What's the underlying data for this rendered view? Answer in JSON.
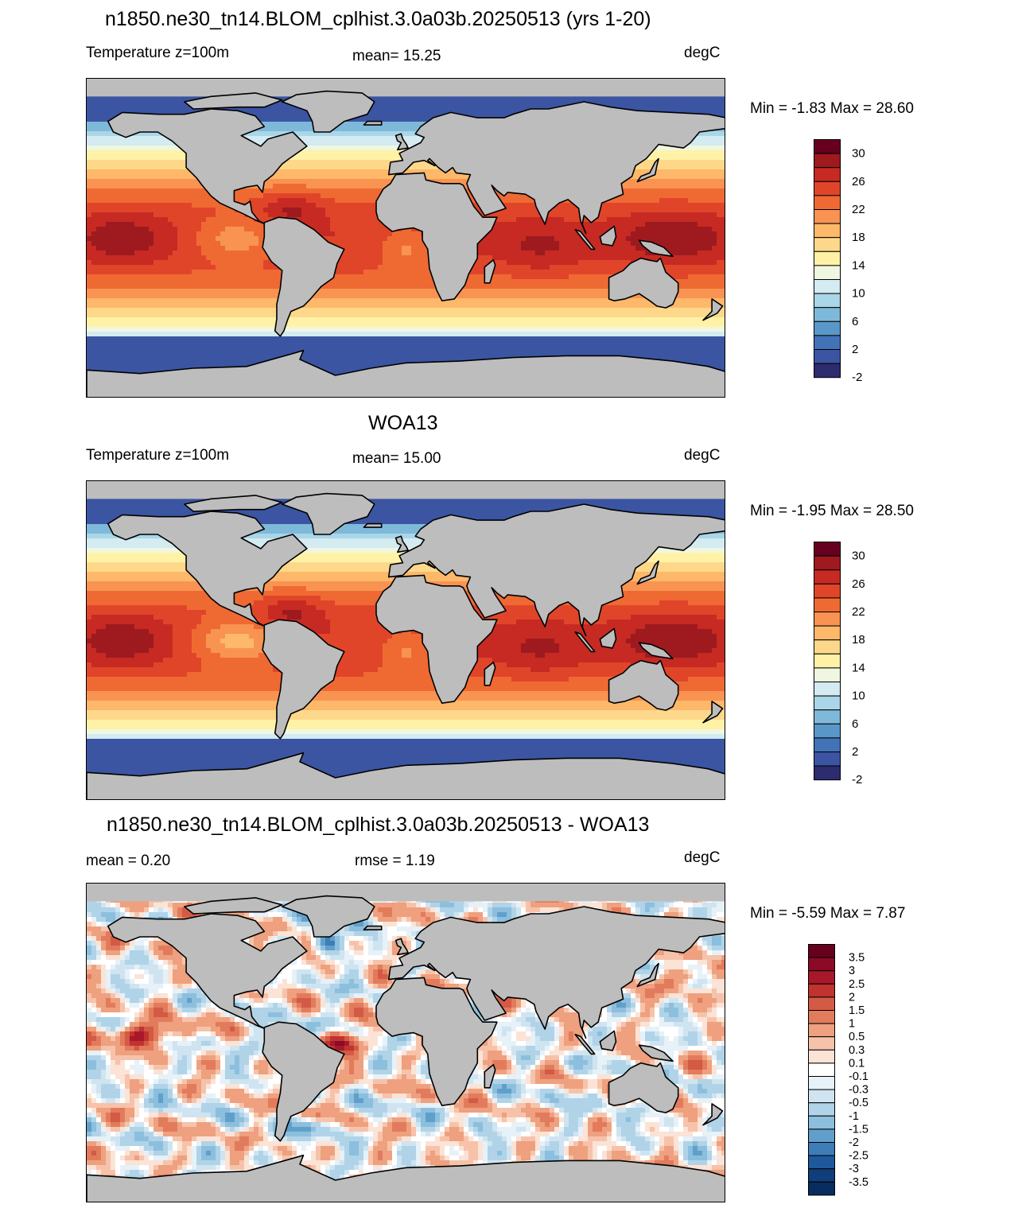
{
  "panels": [
    {
      "title": "n1850.ne30_tn14.BLOM_cplhist.3.0a03b.20250513 (yrs 1-20)",
      "left_label": "Temperature z=100m",
      "center_label": "mean=  15.25",
      "units": "degC",
      "minmax": "Min =  -1.83 Max =  28.60",
      "colorbar_labels": [
        "30",
        "26",
        "22",
        "18",
        "14",
        "10",
        "6",
        "2",
        "-2"
      ],
      "colorbar_colors": [
        "#67001f",
        "#9e1a1f",
        "#c62a22",
        "#e0452a",
        "#ef6a33",
        "#f99352",
        "#fdb86a",
        "#fed88a",
        "#fff2a6",
        "#f0f7e0",
        "#d3ebf1",
        "#a9d6e8",
        "#7fb9da",
        "#5a97c9",
        "#4273b6",
        "#3b55a2",
        "#2c2c6e"
      ],
      "kind": "temp",
      "variant": 0
    },
    {
      "title": "WOA13",
      "left_label": "Temperature z=100m",
      "center_label": "mean=  15.00",
      "units": "degC",
      "minmax": "Min =  -1.95 Max =  28.50",
      "colorbar_labels": [
        "30",
        "26",
        "22",
        "18",
        "14",
        "10",
        "6",
        "2",
        "-2"
      ],
      "colorbar_colors": [
        "#67001f",
        "#9e1a1f",
        "#c62a22",
        "#e0452a",
        "#ef6a33",
        "#f99352",
        "#fdb86a",
        "#fed88a",
        "#fff2a6",
        "#f0f7e0",
        "#d3ebf1",
        "#a9d6e8",
        "#7fb9da",
        "#5a97c9",
        "#4273b6",
        "#3b55a2",
        "#2c2c6e"
      ],
      "kind": "temp",
      "variant": 1
    },
    {
      "title": "n1850.ne30_tn14.BLOM_cplhist.3.0a03b.20250513 - WOA13",
      "left_label": "mean =   0.20",
      "center_label": "rmse =   1.19",
      "units": "degC",
      "minmax": "Min =  -5.59 Max =   7.87",
      "colorbar_labels": [
        "3.5",
        "3",
        "2.5",
        "2",
        "1.5",
        "1",
        "0.5",
        "0.3",
        "0.1",
        "-0.1",
        "-0.3",
        "-0.5",
        "-1",
        "-1.5",
        "-2",
        "-2.5",
        "-3",
        "-3.5"
      ],
      "colorbar_colors": [
        "#67001f",
        "#8b0a26",
        "#a8182a",
        "#c0332f",
        "#d35a44",
        "#e27b5c",
        "#eea07f",
        "#f6c3aa",
        "#fbe3d6",
        "#ffffff",
        "#e6f1f8",
        "#cfe4f0",
        "#b0d3e8",
        "#8bbfdd",
        "#619fcb",
        "#3d7db8",
        "#20589d",
        "#0f3e7a",
        "#082d5e"
      ],
      "kind": "diff",
      "variant": 2
    }
  ]
}
